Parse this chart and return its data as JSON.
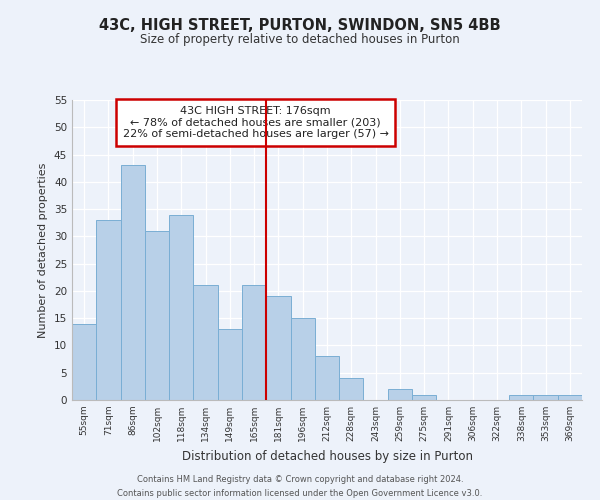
{
  "title": "43C, HIGH STREET, PURTON, SWINDON, SN5 4BB",
  "subtitle": "Size of property relative to detached houses in Purton",
  "xlabel": "Distribution of detached houses by size in Purton",
  "ylabel": "Number of detached properties",
  "bin_labels": [
    "55sqm",
    "71sqm",
    "86sqm",
    "102sqm",
    "118sqm",
    "134sqm",
    "149sqm",
    "165sqm",
    "181sqm",
    "196sqm",
    "212sqm",
    "228sqm",
    "243sqm",
    "259sqm",
    "275sqm",
    "291sqm",
    "306sqm",
    "322sqm",
    "338sqm",
    "353sqm",
    "369sqm"
  ],
  "bar_values": [
    14,
    33,
    43,
    31,
    34,
    21,
    13,
    21,
    19,
    15,
    8,
    4,
    0,
    2,
    1,
    0,
    0,
    0,
    1,
    1,
    1
  ],
  "bar_color": "#b8d0e8",
  "bar_edge_color": "#7aaed4",
  "vline_x": 8,
  "vline_color": "#cc0000",
  "ylim": [
    0,
    55
  ],
  "yticks": [
    0,
    5,
    10,
    15,
    20,
    25,
    30,
    35,
    40,
    45,
    50,
    55
  ],
  "annotation_title": "43C HIGH STREET: 176sqm",
  "annotation_line1": "← 78% of detached houses are smaller (203)",
  "annotation_line2": "22% of semi-detached houses are larger (57) →",
  "annotation_box_color": "#ffffff",
  "annotation_box_edge": "#cc0000",
  "footer_line1": "Contains HM Land Registry data © Crown copyright and database right 2024.",
  "footer_line2": "Contains public sector information licensed under the Open Government Licence v3.0.",
  "bg_color": "#edf2fa"
}
